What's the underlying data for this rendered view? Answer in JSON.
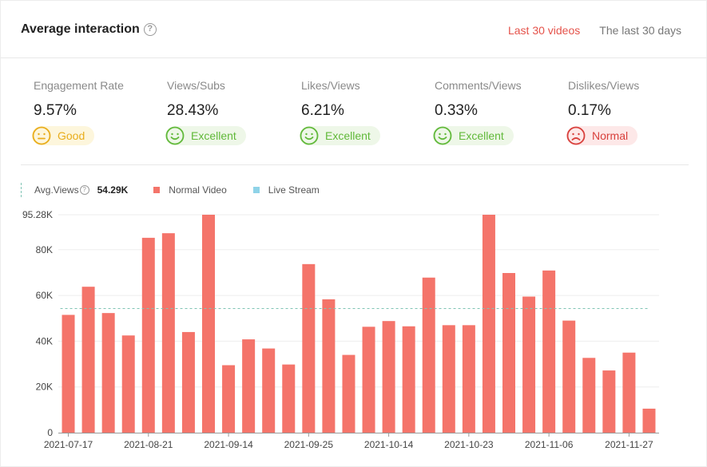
{
  "header": {
    "title": "Average interaction",
    "help": "?",
    "tabs": [
      {
        "label": "Last 30 videos",
        "active": true
      },
      {
        "label": "The last 30 days",
        "active": false
      }
    ]
  },
  "metrics": [
    {
      "label": "Engagement Rate",
      "value": "9.57%",
      "rating": "Good",
      "mood": "neutral"
    },
    {
      "label": "Views/Subs",
      "value": "28.43%",
      "rating": "Excellent",
      "mood": "happy"
    },
    {
      "label": "Likes/Views",
      "value": "6.21%",
      "rating": "Excellent",
      "mood": "happy"
    },
    {
      "label": "Comments/Views",
      "value": "0.33%",
      "rating": "Excellent",
      "mood": "happy"
    },
    {
      "label": "Dislikes/Views",
      "value": "0.17%",
      "rating": "Normal",
      "mood": "sad"
    }
  ],
  "legend": {
    "avg_label": "Avg.Views",
    "avg_help": "?",
    "avg_value": "54.29K",
    "normal_label": "Normal Video",
    "live_label": "Live Stream"
  },
  "colors": {
    "normal": "#f4746a",
    "live": "#8fd3e8",
    "avg_line": "#7fc4b4",
    "good": "#e9ad1c",
    "excellent": "#61b93a",
    "normal_rating": "#d8403c"
  },
  "chart_data": {
    "type": "bar",
    "title": "",
    "xlabel": "",
    "ylabel": "",
    "ylim": [
      0,
      95280
    ],
    "y_ticks": [
      {
        "value": 0,
        "label": "0"
      },
      {
        "value": 20000,
        "label": "20K"
      },
      {
        "value": 40000,
        "label": "40K"
      },
      {
        "value": 60000,
        "label": "60K"
      },
      {
        "value": 80000,
        "label": "80K"
      },
      {
        "value": 95280,
        "label": "95.28K"
      }
    ],
    "average": 54290,
    "x_tick_labels": [
      {
        "index": 0,
        "label": "2021-07-17"
      },
      {
        "index": 4,
        "label": "2021-08-21"
      },
      {
        "index": 8,
        "label": "2021-09-14"
      },
      {
        "index": 12,
        "label": "2021-09-25"
      },
      {
        "index": 16,
        "label": "2021-10-14"
      },
      {
        "index": 20,
        "label": "2021-10-23"
      },
      {
        "index": 24,
        "label": "2021-11-06"
      },
      {
        "index": 28,
        "label": "2021-11-27"
      }
    ],
    "series": [
      {
        "name": "Normal Video",
        "values": [
          51500,
          63800,
          52300,
          42500,
          85200,
          87200,
          44000,
          95280,
          29500,
          40800,
          36800,
          29800,
          73700,
          58300,
          34000,
          46300,
          48800,
          46500,
          67800,
          47000,
          47000,
          95280,
          69800,
          59500,
          70900,
          49000,
          32700,
          27200,
          35000,
          10500
        ]
      },
      {
        "name": "Live Stream",
        "values": []
      }
    ]
  }
}
